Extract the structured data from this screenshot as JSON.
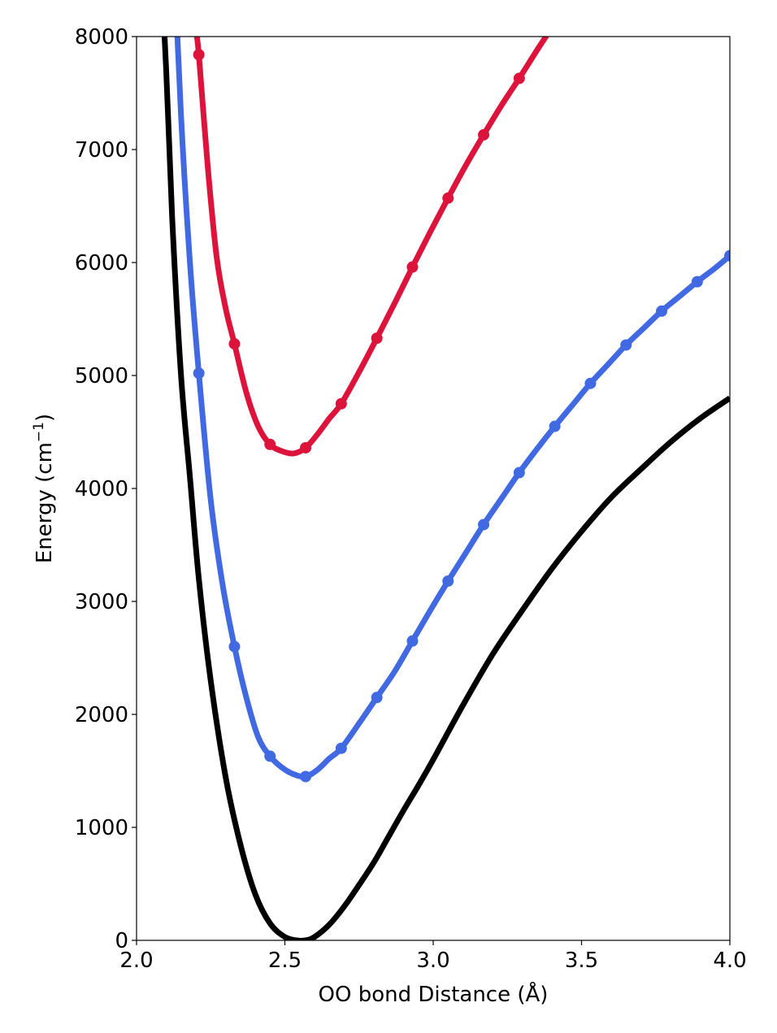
{
  "chart_data": {
    "type": "line",
    "xlabel": "OO bond Distance (Å)",
    "ylabel_main": "Energy (cm",
    "ylabel_sup": "−1",
    "ylabel_close": ")",
    "xlim": [
      2.0,
      4.0
    ],
    "ylim": [
      0,
      8000
    ],
    "x_ticks": [
      2.0,
      2.5,
      3.0,
      3.5,
      4.0
    ],
    "x_tick_labels": [
      "2.0",
      "2.5",
      "3.0",
      "3.5",
      "4.0"
    ],
    "y_ticks": [
      0,
      1000,
      2000,
      3000,
      4000,
      5000,
      6000,
      7000,
      8000
    ],
    "y_tick_labels": [
      "0",
      "1000",
      "2000",
      "3000",
      "4000",
      "5000",
      "6000",
      "7000",
      "8000"
    ],
    "grid": false,
    "series": [
      {
        "color": "#000000",
        "markers": false,
        "points": [
          [
            2.075,
            9000
          ],
          [
            2.1,
            7700
          ],
          [
            2.12,
            6400
          ],
          [
            2.15,
            5000
          ],
          [
            2.18,
            4100
          ],
          [
            2.21,
            3200
          ],
          [
            2.25,
            2300
          ],
          [
            2.3,
            1450
          ],
          [
            2.35,
            850
          ],
          [
            2.4,
            410
          ],
          [
            2.45,
            150
          ],
          [
            2.5,
            30
          ],
          [
            2.54,
            0
          ],
          [
            2.57,
            0
          ],
          [
            2.6,
            30
          ],
          [
            2.65,
            140
          ],
          [
            2.7,
            300
          ],
          [
            2.75,
            490
          ],
          [
            2.8,
            690
          ],
          [
            2.85,
            920
          ],
          [
            2.9,
            1150
          ],
          [
            2.95,
            1370
          ],
          [
            3.0,
            1600
          ],
          [
            3.1,
            2080
          ],
          [
            3.2,
            2530
          ],
          [
            3.3,
            2920
          ],
          [
            3.4,
            3290
          ],
          [
            3.5,
            3620
          ],
          [
            3.6,
            3920
          ],
          [
            3.7,
            4170
          ],
          [
            3.8,
            4410
          ],
          [
            3.9,
            4620
          ],
          [
            4.0,
            4800
          ]
        ]
      },
      {
        "color": "#4169e1",
        "markers": true,
        "points": [
          [
            2.125,
            8800
          ],
          [
            2.15,
            7300
          ],
          [
            2.18,
            6000
          ],
          [
            2.21,
            5020
          ],
          [
            2.25,
            3900
          ],
          [
            2.29,
            3150
          ],
          [
            2.33,
            2600
          ],
          [
            2.37,
            2150
          ],
          [
            2.41,
            1800
          ],
          [
            2.45,
            1630
          ],
          [
            2.49,
            1530
          ],
          [
            2.53,
            1470
          ],
          [
            2.57,
            1450
          ],
          [
            2.61,
            1510
          ],
          [
            2.65,
            1610
          ],
          [
            2.69,
            1700
          ],
          [
            2.75,
            1920
          ],
          [
            2.81,
            2150
          ],
          [
            2.87,
            2380
          ],
          [
            2.93,
            2650
          ],
          [
            2.99,
            2920
          ],
          [
            3.05,
            3180
          ],
          [
            3.11,
            3430
          ],
          [
            3.17,
            3680
          ],
          [
            3.23,
            3910
          ],
          [
            3.29,
            4140
          ],
          [
            3.35,
            4350
          ],
          [
            3.41,
            4550
          ],
          [
            3.47,
            4740
          ],
          [
            3.53,
            4930
          ],
          [
            3.59,
            5100
          ],
          [
            3.65,
            5270
          ],
          [
            3.71,
            5420
          ],
          [
            3.77,
            5570
          ],
          [
            3.83,
            5700
          ],
          [
            3.89,
            5830
          ],
          [
            3.95,
            5950
          ],
          [
            4.0,
            6060
          ]
        ],
        "marker_x": [
          2.21,
          2.33,
          2.45,
          2.57,
          2.69,
          2.81,
          2.93,
          3.05,
          3.17,
          3.29,
          3.41,
          3.53,
          3.65,
          3.77,
          3.89,
          4.0
        ],
        "marker_y": [
          5020,
          2600,
          1630,
          1450,
          1700,
          2150,
          2650,
          3180,
          3680,
          4140,
          4550,
          4930,
          5270,
          5570,
          5830,
          6060
        ]
      },
      {
        "color": "#dc143c",
        "markers": true,
        "points": [
          [
            2.2,
            8050
          ],
          [
            2.21,
            7840
          ],
          [
            2.24,
            6850
          ],
          [
            2.27,
            6050
          ],
          [
            2.3,
            5600
          ],
          [
            2.33,
            5280
          ],
          [
            2.37,
            4850
          ],
          [
            2.41,
            4550
          ],
          [
            2.45,
            4390
          ],
          [
            2.49,
            4330
          ],
          [
            2.53,
            4310
          ],
          [
            2.57,
            4360
          ],
          [
            2.61,
            4480
          ],
          [
            2.65,
            4620
          ],
          [
            2.69,
            4750
          ],
          [
            2.75,
            5030
          ],
          [
            2.81,
            5330
          ],
          [
            2.87,
            5640
          ],
          [
            2.93,
            5960
          ],
          [
            2.99,
            6270
          ],
          [
            3.05,
            6570
          ],
          [
            3.11,
            6860
          ],
          [
            3.17,
            7130
          ],
          [
            3.23,
            7390
          ],
          [
            3.29,
            7630
          ],
          [
            3.35,
            7880
          ],
          [
            3.38,
            8000
          ],
          [
            3.41,
            8120
          ]
        ],
        "marker_x": [
          2.21,
          2.33,
          2.45,
          2.57,
          2.69,
          2.81,
          2.93,
          3.05,
          3.17,
          3.29
        ],
        "marker_y": [
          7840,
          5280,
          4390,
          4360,
          4750,
          5330,
          5960,
          6570,
          7130,
          7630
        ]
      }
    ]
  }
}
